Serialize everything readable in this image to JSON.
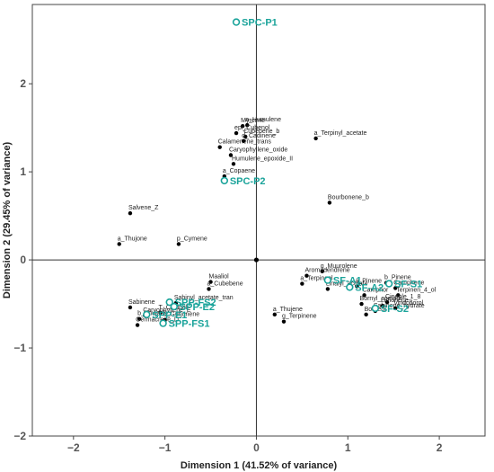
{
  "chart_data": {
    "type": "scatter",
    "title": "",
    "xlabel": "Dimension 1 (41.52% of variance)",
    "ylabel": "Dimension 2 (29.45% of variance)",
    "xlim": [
      -2.45,
      2.5
    ],
    "ylim": [
      -2.0,
      2.9
    ],
    "xticks": [
      -2,
      -1,
      0,
      1,
      2
    ],
    "yticks": [
      -2,
      -1,
      0,
      1,
      2
    ],
    "tick_labels_x": [
      "−2",
      "−1",
      "0",
      "1",
      "2"
    ],
    "tick_labels_y": [
      "−2",
      "−1",
      "0",
      "1",
      "2"
    ],
    "grid": false,
    "reference_lines": [
      0
    ],
    "origin_point": [
      0,
      0
    ],
    "colors": {
      "variables": "#000000",
      "objects": "#1aa39a",
      "axes": "#333333"
    },
    "series": [
      {
        "kind": "variables",
        "points": [
          {
            "label": "Myrcene",
            "x": -0.15,
            "y": 1.52
          },
          {
            "label": "a_Humulene",
            "x": -0.1,
            "y": 1.53
          },
          {
            "label": "epi_Cubenol",
            "x": -0.22,
            "y": 1.44
          },
          {
            "label": "Cubebene_b",
            "x": -0.12,
            "y": 1.4
          },
          {
            "label": "Calamenene_trans",
            "x": -0.4,
            "y": 1.28
          },
          {
            "label": "d_Cadinene",
            "x": -0.14,
            "y": 1.35
          },
          {
            "label": "Caryophyllene_oxide",
            "x": -0.28,
            "y": 1.19
          },
          {
            "label": "Humulene_epoxide_II",
            "x": -0.25,
            "y": 1.09
          },
          {
            "label": "a_Terpinyl_acetate",
            "x": 0.65,
            "y": 1.38
          },
          {
            "label": "a_Copaene",
            "x": -0.35,
            "y": 0.95
          },
          {
            "label": "Bourbonene_b",
            "x": 0.8,
            "y": 0.65
          },
          {
            "label": "Salvene_Z",
            "x": -1.38,
            "y": 0.53
          },
          {
            "label": "a_Thujone",
            "x": -1.5,
            "y": 0.18
          },
          {
            "label": "p_Cymene",
            "x": -0.85,
            "y": 0.18
          },
          {
            "label": "g_Muurolene",
            "x": 0.72,
            "y": -0.13
          },
          {
            "label": "Aromadendrene",
            "x": 0.55,
            "y": -0.18
          },
          {
            "label": "a_Terpineol",
            "x": 0.5,
            "y": -0.27
          },
          {
            "label": "Linalyl_acetate",
            "x": 0.78,
            "y": -0.33
          },
          {
            "label": "b_Pinene",
            "x": 1.42,
            "y": -0.26
          },
          {
            "label": "a_Pinene",
            "x": 1.1,
            "y": -0.3
          },
          {
            "label": "Camphene",
            "x": 1.52,
            "y": -0.32
          },
          {
            "label": "Camphor",
            "x": 1.18,
            "y": -0.4
          },
          {
            "label": "Terpinen_4_ol",
            "x": 1.55,
            "y": -0.4
          },
          {
            "label": "Cineole_1_8",
            "x": 1.43,
            "y": -0.48
          },
          {
            "label": "Limonene",
            "x": 1.38,
            "y": -0.52
          },
          {
            "label": "Viridoflorol",
            "x": 1.52,
            "y": -0.55
          },
          {
            "label": "Bornyl_acetate",
            "x": 1.15,
            "y": -0.5
          },
          {
            "label": "Borneol",
            "x": 1.2,
            "y": -0.62
          },
          {
            "label": "Sabinene_hydrate",
            "x": 1.3,
            "y": -0.58
          },
          {
            "label": "a_Thujene",
            "x": 0.2,
            "y": -0.62
          },
          {
            "label": "g_Terpinene",
            "x": 0.3,
            "y": -0.7
          },
          {
            "label": "Maaliol",
            "x": -0.5,
            "y": -0.25
          },
          {
            "label": "a_Cubebene",
            "x": -0.52,
            "y": -0.33
          },
          {
            "label": "Sabinyl_acetate_tran",
            "x": -0.88,
            "y": -0.49
          },
          {
            "label": "Sabinene",
            "x": -1.38,
            "y": -0.54
          },
          {
            "label": "Caryophyllene_E",
            "x": -1.22,
            "y": -0.63
          },
          {
            "label": "b_Thujone",
            "x": -1.28,
            "y": -0.67
          },
          {
            "label": "T_Cadinol",
            "x": -1.05,
            "y": -0.6
          },
          {
            "label": "b_Gurjunene",
            "x": -1.0,
            "y": -0.68
          },
          {
            "label": "Germacrene_D",
            "x": -1.3,
            "y": -0.74
          }
        ]
      },
      {
        "kind": "objects",
        "points": [
          {
            "label": "SPC-P1",
            "x": -0.22,
            "y": 2.7
          },
          {
            "label": "SPC-P2",
            "x": -0.35,
            "y": 0.9
          },
          {
            "label": "SF-A2",
            "x": 1.02,
            "y": -0.31
          },
          {
            "label": "SF-A1",
            "x": 0.78,
            "y": -0.23
          },
          {
            "label": "SF-S1",
            "x": 1.45,
            "y": -0.27
          },
          {
            "label": "SF-S2",
            "x": 1.3,
            "y": -0.55
          },
          {
            "label": "SPP-FS2",
            "x": -0.95,
            "y": -0.48
          },
          {
            "label": "SPP-E2",
            "x": -0.9,
            "y": -0.53
          },
          {
            "label": "SPP-E1",
            "x": -1.2,
            "y": -0.62
          },
          {
            "label": "SPP-FS1",
            "x": -1.02,
            "y": -0.72
          }
        ]
      }
    ]
  }
}
